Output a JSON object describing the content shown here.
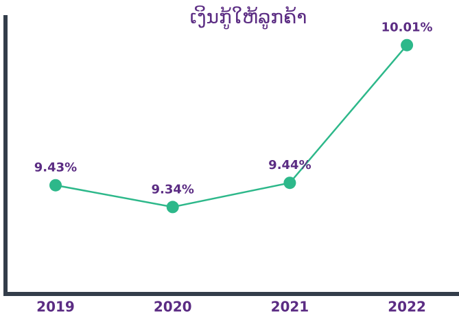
{
  "chart_data": {
    "type": "line",
    "title": "ເງິນກູ້ໃຫ້ລູກຄ້າ",
    "categories": [
      "2019",
      "2020",
      "2021",
      "2022"
    ],
    "values": [
      9.43,
      9.34,
      9.44,
      10.01
    ],
    "value_labels": [
      "9.43%",
      "9.34%",
      "9.44%",
      "10.01%"
    ],
    "color": "#2db88a",
    "ylim": [
      8.98,
      10.14
    ]
  }
}
